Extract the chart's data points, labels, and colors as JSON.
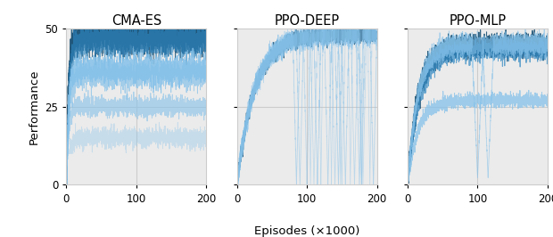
{
  "titles": [
    "CMA-ES",
    "PPO-DEEP",
    "PPO-MLP"
  ],
  "xlabel": "Episodes (×1000)",
  "ylabel": "Performance",
  "xlim": [
    0,
    200
  ],
  "ylim": [
    0,
    50
  ],
  "yticks": [
    0,
    25,
    50
  ],
  "xticks": [
    0,
    100,
    200
  ],
  "dark_blue": "#1a5276",
  "mid_blue": "#2e86c1",
  "light_blue": "#85c1e9",
  "bg_color": "#ebebeb",
  "seed": 7
}
